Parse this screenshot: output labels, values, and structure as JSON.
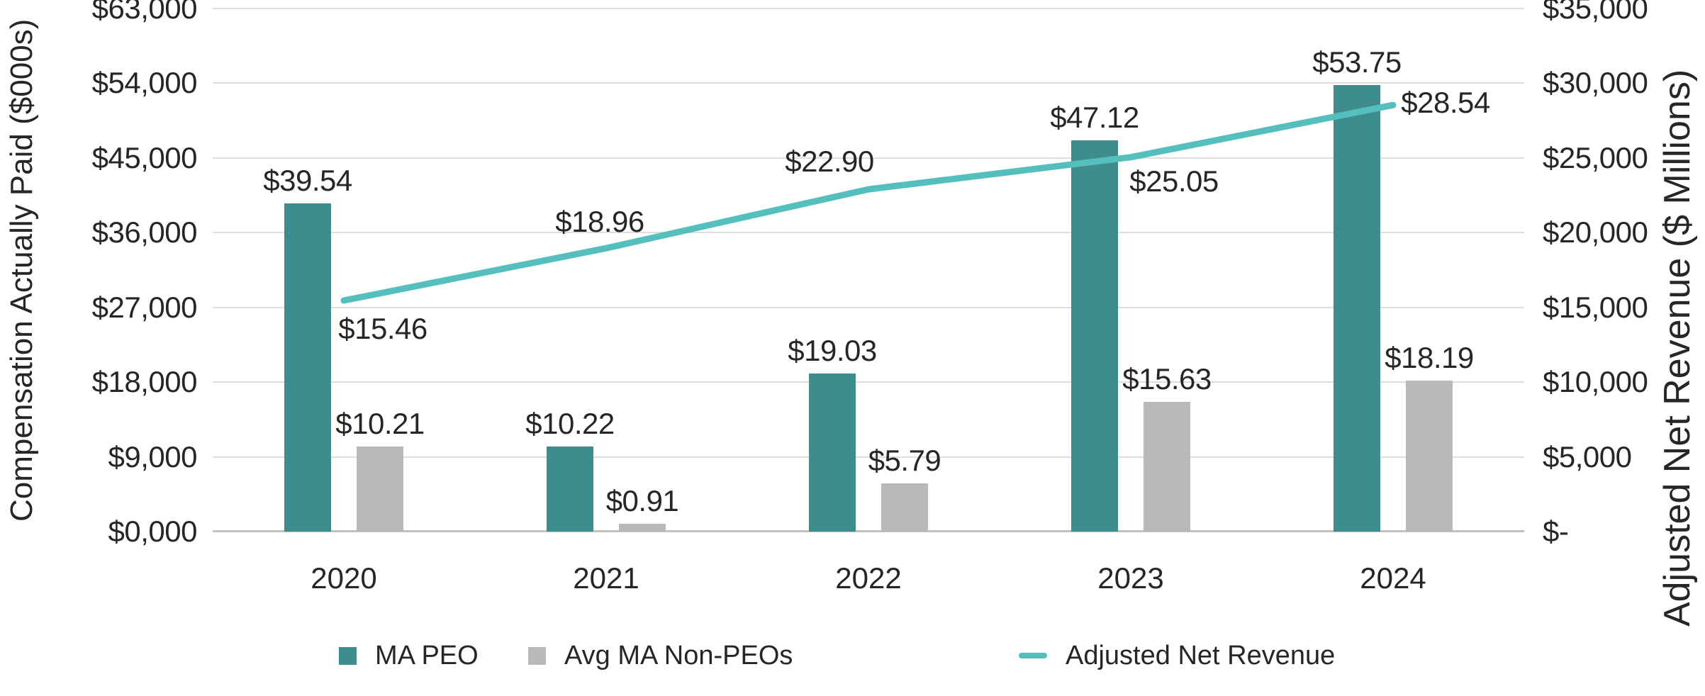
{
  "chart_data": {
    "type": "combo",
    "categories": [
      "2020",
      "2021",
      "2022",
      "2023",
      "2024"
    ],
    "series": [
      {
        "name": "MA PEO",
        "chart": "bar",
        "axis": "left",
        "color": "#3F8C8C",
        "values": [
          39.54,
          10.22,
          19.03,
          47.12,
          53.75
        ],
        "labels": [
          "$39.54",
          "$10.22",
          "$19.03",
          "$47.12",
          "$53.75"
        ]
      },
      {
        "name": "Avg MA Non-PEOs",
        "chart": "bar",
        "axis": "left",
        "color": "#B9B9B9",
        "values": [
          10.21,
          0.91,
          5.79,
          15.63,
          18.19
        ],
        "labels": [
          "$10.21",
          "$0.91",
          "$5.79",
          "$15.63",
          "$18.19"
        ]
      },
      {
        "name": "Adjusted Net Revenue",
        "chart": "line",
        "axis": "right",
        "color": "#54BFBC",
        "values": [
          15.46,
          18.96,
          22.9,
          25.05,
          28.54
        ],
        "labels": [
          "$15.46",
          "$18.96",
          "$22.90",
          "$25.05",
          "$28.54"
        ]
      }
    ],
    "axes": {
      "left": {
        "title": "Compensation Actually Paid ($000s)",
        "ticks": [
          "$63,000",
          "$54,000",
          "$45,000",
          "$36,000",
          "$27,000",
          "$18,000",
          "$9,000",
          "$0,000"
        ],
        "min": 0,
        "max": 63
      },
      "right": {
        "title": "Adjusted Net Revenue ($ Millions)",
        "ticks": [
          "$35,000",
          "$30,000",
          "$25,000",
          "$20,000",
          "$15,000",
          "$10,000",
          "$5,000",
          "$-"
        ],
        "min": 0,
        "max": 35
      }
    },
    "legend": {
      "position": "bottom",
      "items": [
        {
          "label": "MA PEO",
          "swatch": "square",
          "color": "#3F8C8C"
        },
        {
          "label": "Avg MA Non-PEOs",
          "swatch": "square",
          "color": "#B9B9B9"
        },
        {
          "label": "Adjusted Net Revenue",
          "swatch": "line",
          "color": "#54BFBC"
        }
      ]
    },
    "grid": true
  }
}
